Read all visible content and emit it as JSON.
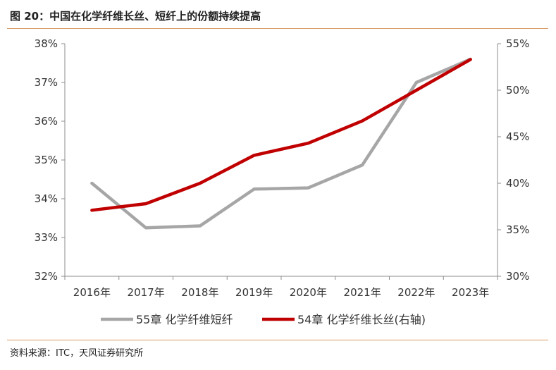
{
  "title": "图 20：中国在化学纤维长丝、短纤上的份额持续提高",
  "source": "资料来源：ITC，天风证券研究所",
  "chart_data": {
    "type": "line",
    "title": "图 20：中国在化学纤维长丝、短纤上的份额持续提高",
    "categories": [
      "2016年",
      "2017年",
      "2018年",
      "2019年",
      "2020年",
      "2021年",
      "2022年",
      "2023年"
    ],
    "left_axis": {
      "min": 32,
      "max": 38,
      "step": 1,
      "tick_labels": [
        "32%",
        "33%",
        "34%",
        "35%",
        "36%",
        "37%",
        "38%"
      ]
    },
    "right_axis": {
      "min": 30,
      "max": 55,
      "step": 5,
      "tick_labels": [
        "30%",
        "35%",
        "40%",
        "45%",
        "50%",
        "55%"
      ]
    },
    "series": [
      {
        "name": "55章 化学纤维短纤",
        "axis": "left",
        "color": "#a6a6a6",
        "values": [
          34.4,
          33.25,
          33.3,
          34.25,
          34.28,
          34.87,
          37.0,
          37.6
        ]
      },
      {
        "name": "54章 化学纤维长丝(右轴)",
        "axis": "right",
        "color": "#c00000",
        "values": [
          37.1,
          37.8,
          40.0,
          43.0,
          44.3,
          46.7,
          50.0,
          53.3
        ]
      }
    ],
    "legend_position": "bottom",
    "grid": false
  }
}
